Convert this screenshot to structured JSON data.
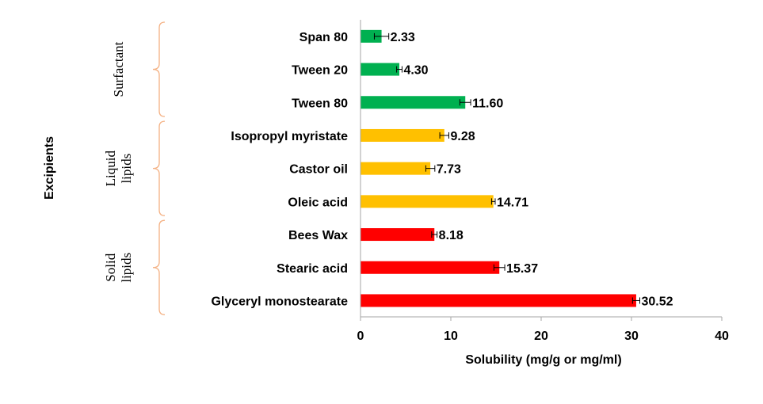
{
  "chart_data": {
    "type": "bar",
    "orientation": "horizontal",
    "xlabel": "Solubility (mg/g or mg/ml)",
    "ylabel": "Excipients",
    "xlim": [
      0,
      40
    ],
    "xticks": [
      0,
      10,
      20,
      30,
      40
    ],
    "grid": false,
    "categories": [
      "Span 80",
      "Tween 20",
      "Tween 80",
      "Isopropyl myristate",
      "Castor oil",
      "Oleic acid",
      "Bees Wax",
      "Stearic acid",
      "Glyceryl monostearate"
    ],
    "values": [
      2.33,
      4.3,
      11.6,
      9.28,
      7.73,
      14.71,
      8.18,
      15.37,
      30.52
    ],
    "value_labels": [
      "2.33",
      "4.30",
      "11.60",
      "9.28",
      "7.73",
      "14.71",
      "8.18",
      "15.37",
      "30.52"
    ],
    "errors": [
      0.8,
      0.3,
      0.6,
      0.5,
      0.5,
      0.2,
      0.3,
      0.6,
      0.4
    ],
    "groups": [
      {
        "label_lines": [
          "Surfactant"
        ],
        "color": "#00b050",
        "members": [
          0,
          1,
          2
        ]
      },
      {
        "label_lines": [
          "Liquid",
          "lipids"
        ],
        "color": "#ffc000",
        "members": [
          3,
          4,
          5
        ]
      },
      {
        "label_lines": [
          "Solid",
          "lipids"
        ],
        "color": "#ff0000",
        "members": [
          6,
          7,
          8
        ]
      }
    ],
    "bracket_color": "#f4b183"
  }
}
